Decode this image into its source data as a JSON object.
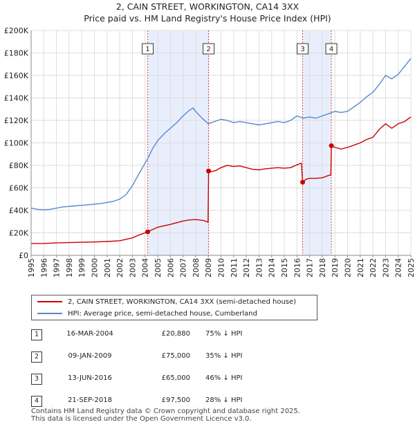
{
  "title_line1": "2, CAIN STREET, WORKINGTON, CA14 3XX",
  "title_line2": "Price paid vs. HM Land Registry's House Price Index (HPI)",
  "chart_data": {
    "type": "line",
    "xlim": [
      1995,
      2025
    ],
    "ylim": [
      0,
      200000
    ],
    "y_ticks": [
      0,
      20000,
      40000,
      60000,
      80000,
      100000,
      120000,
      140000,
      160000,
      180000,
      200000
    ],
    "y_tick_labels": [
      "£0",
      "£20K",
      "£40K",
      "£60K",
      "£80K",
      "£100K",
      "£120K",
      "£140K",
      "£160K",
      "£180K",
      "£200K"
    ],
    "x_tick_labels": [
      "1995",
      "1996",
      "1997",
      "1998",
      "1999",
      "2000",
      "2001",
      "2002",
      "2003",
      "2004",
      "2005",
      "2006",
      "2007",
      "2008",
      "2009",
      "2010",
      "2011",
      "2012",
      "2013",
      "2014",
      "2015",
      "2016",
      "2017",
      "2018",
      "2019",
      "2020",
      "2021",
      "2022",
      "2023",
      "2024",
      "2025"
    ],
    "grid": true,
    "shaded_spans": [
      [
        2004.21,
        2009.02
      ],
      [
        2016.45,
        2018.72
      ]
    ],
    "series": [
      {
        "name": "2, CAIN STREET, WORKINGTON, CA14 3XX (semi-detached house)",
        "color": "#cc0000",
        "points": [
          [
            1995.0,
            10500
          ],
          [
            1996.0,
            10600
          ],
          [
            1997.0,
            11000
          ],
          [
            1998.0,
            11300
          ],
          [
            1999.0,
            11600
          ],
          [
            2000.0,
            11900
          ],
          [
            2001.0,
            12300
          ],
          [
            2002.0,
            13000
          ],
          [
            2003.0,
            15500
          ],
          [
            2003.5,
            18000
          ],
          [
            2004.21,
            20880
          ],
          [
            2004.6,
            23000
          ],
          [
            2005.0,
            25000
          ],
          [
            2006.0,
            27500
          ],
          [
            2007.0,
            30500
          ],
          [
            2007.5,
            31500
          ],
          [
            2008.0,
            31800
          ],
          [
            2008.6,
            31000
          ],
          [
            2008.98,
            29500
          ],
          [
            2009.02,
            75000
          ],
          [
            2009.3,
            74500
          ],
          [
            2009.6,
            75500
          ],
          [
            2010.0,
            78000
          ],
          [
            2010.5,
            80000
          ],
          [
            2011.0,
            79000
          ],
          [
            2011.5,
            79500
          ],
          [
            2012.0,
            78000
          ],
          [
            2012.5,
            76500
          ],
          [
            2013.0,
            76000
          ],
          [
            2013.5,
            77000
          ],
          [
            2014.0,
            77500
          ],
          [
            2014.5,
            78000
          ],
          [
            2015.0,
            77500
          ],
          [
            2015.5,
            78000
          ],
          [
            2016.0,
            80500
          ],
          [
            2016.35,
            82000
          ],
          [
            2016.45,
            65000
          ],
          [
            2016.7,
            67500
          ],
          [
            2017.0,
            68500
          ],
          [
            2017.5,
            68500
          ],
          [
            2018.0,
            69000
          ],
          [
            2018.5,
            71000
          ],
          [
            2018.68,
            71500
          ],
          [
            2018.72,
            97500
          ],
          [
            2019.0,
            96000
          ],
          [
            2019.5,
            94500
          ],
          [
            2020.0,
            96000
          ],
          [
            2020.5,
            98000
          ],
          [
            2021.0,
            100000
          ],
          [
            2021.5,
            103000
          ],
          [
            2022.0,
            105000
          ],
          [
            2022.5,
            112000
          ],
          [
            2023.0,
            117000
          ],
          [
            2023.5,
            113000
          ],
          [
            2024.0,
            117000
          ],
          [
            2024.5,
            119000
          ],
          [
            2025.0,
            123000
          ]
        ]
      },
      {
        "name": "HPI: Average price, semi-detached house, Cumberland",
        "color": "#5588cc",
        "points": [
          [
            1995.0,
            42000
          ],
          [
            1995.5,
            41000
          ],
          [
            1996.0,
            40500
          ],
          [
            1996.5,
            41000
          ],
          [
            1997.0,
            42000
          ],
          [
            1997.5,
            43000
          ],
          [
            1998.0,
            43500
          ],
          [
            1998.5,
            44000
          ],
          [
            1999.0,
            44500
          ],
          [
            1999.5,
            45000
          ],
          [
            2000.0,
            45500
          ],
          [
            2000.5,
            46000
          ],
          [
            2001.0,
            47000
          ],
          [
            2001.5,
            48000
          ],
          [
            2002.0,
            50000
          ],
          [
            2002.5,
            54000
          ],
          [
            2003.0,
            62000
          ],
          [
            2003.5,
            72000
          ],
          [
            2004.0,
            82000
          ],
          [
            2004.3,
            88000
          ],
          [
            2004.6,
            95000
          ],
          [
            2005.0,
            102000
          ],
          [
            2005.5,
            108000
          ],
          [
            2006.0,
            113000
          ],
          [
            2006.5,
            118000
          ],
          [
            2007.0,
            124000
          ],
          [
            2007.5,
            129000
          ],
          [
            2007.8,
            131000
          ],
          [
            2008.0,
            128000
          ],
          [
            2008.5,
            122000
          ],
          [
            2009.0,
            117000
          ],
          [
            2009.5,
            119000
          ],
          [
            2010.0,
            121000
          ],
          [
            2010.5,
            120000
          ],
          [
            2011.0,
            118000
          ],
          [
            2011.5,
            119000
          ],
          [
            2012.0,
            118000
          ],
          [
            2012.5,
            117000
          ],
          [
            2013.0,
            116000
          ],
          [
            2013.5,
            117000
          ],
          [
            2014.0,
            118000
          ],
          [
            2014.5,
            119000
          ],
          [
            2015.0,
            118000
          ],
          [
            2015.5,
            120000
          ],
          [
            2016.0,
            124000
          ],
          [
            2016.5,
            122000
          ],
          [
            2017.0,
            123000
          ],
          [
            2017.5,
            122000
          ],
          [
            2018.0,
            124000
          ],
          [
            2018.5,
            126000
          ],
          [
            2019.0,
            128000
          ],
          [
            2019.5,
            127000
          ],
          [
            2020.0,
            128000
          ],
          [
            2020.5,
            132000
          ],
          [
            2021.0,
            136000
          ],
          [
            2021.5,
            141000
          ],
          [
            2022.0,
            145000
          ],
          [
            2022.5,
            152000
          ],
          [
            2023.0,
            160000
          ],
          [
            2023.5,
            157000
          ],
          [
            2024.0,
            161000
          ],
          [
            2024.5,
            168000
          ],
          [
            2025.0,
            175000
          ]
        ]
      }
    ],
    "sale_markers": [
      {
        "label": "1",
        "x": 2004.21,
        "y": 20880
      },
      {
        "label": "2",
        "x": 2009.02,
        "y": 75000
      },
      {
        "label": "3",
        "x": 2016.45,
        "y": 65000
      },
      {
        "label": "4",
        "x": 2018.72,
        "y": 97500
      }
    ]
  },
  "legend": {
    "property_label": "2, CAIN STREET, WORKINGTON, CA14 3XX (semi-detached house)",
    "hpi_label": "HPI: Average price, semi-detached house, Cumberland"
  },
  "sales": [
    {
      "num": "1",
      "date": "16-MAR-2004",
      "price": "£20,880",
      "diff": "75% ↓ HPI"
    },
    {
      "num": "2",
      "date": "09-JAN-2009",
      "price": "£75,000",
      "diff": "35% ↓ HPI"
    },
    {
      "num": "3",
      "date": "13-JUN-2016",
      "price": "£65,000",
      "diff": "46% ↓ HPI"
    },
    {
      "num": "4",
      "date": "21-SEP-2018",
      "price": "£97,500",
      "diff": "28% ↓ HPI"
    }
  ],
  "footer_line1": "Contains HM Land Registry data © Crown copyright and database right 2025.",
  "footer_line2": "This data is licensed under the Open Government Licence v3.0."
}
